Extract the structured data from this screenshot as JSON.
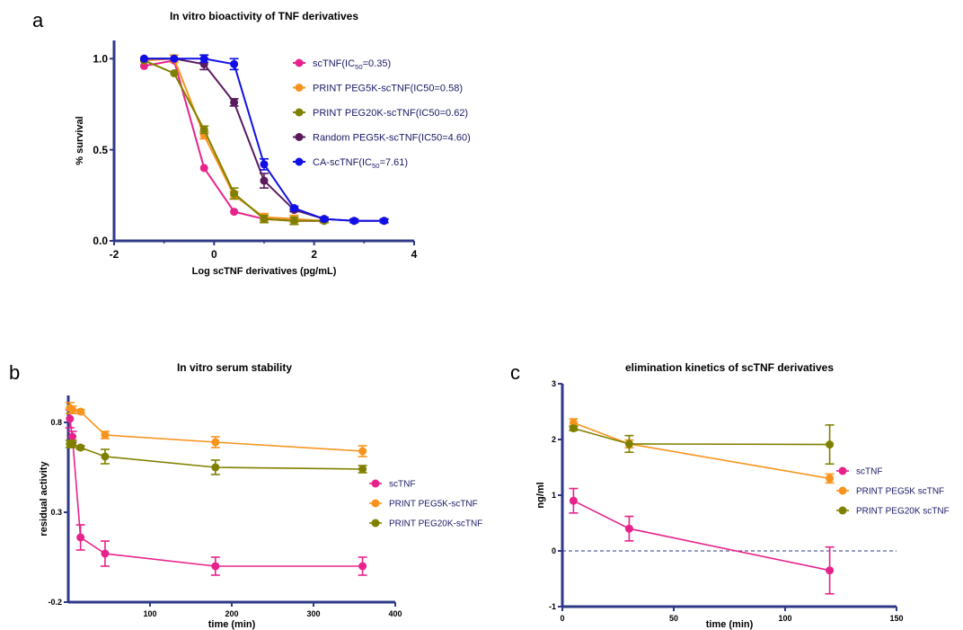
{
  "panels": {
    "a": {
      "letter": "a"
    },
    "b": {
      "letter": "b"
    },
    "c": {
      "letter": "c"
    }
  },
  "chart_data": [
    {
      "id": "a",
      "type": "line",
      "title": "In vitro bioactivity of TNF derivatives",
      "xlabel": "Log scTNF derivatives (pg/mL)",
      "ylabel": "% survival",
      "xlim": [
        -2,
        4
      ],
      "ylim": [
        0,
        1.1
      ],
      "xticks": [
        -2,
        0,
        2,
        4
      ],
      "yticks": [
        0.0,
        0.5,
        1.0
      ],
      "ytick_labels": [
        "0.0",
        "0.5",
        "1.0"
      ],
      "legend_position": "top-right",
      "series": [
        {
          "name": "scTNF(IC",
          "name_sub": "50",
          "name_tail": "=0.35)",
          "color": "#e8228b",
          "x": [
            -1.4,
            -0.8,
            -0.2,
            0.4,
            1.0,
            1.6,
            2.2
          ],
          "y": [
            0.96,
            0.99,
            0.4,
            0.16,
            0.12,
            0.11,
            0.11
          ],
          "err": [
            0,
            0,
            0,
            0,
            0,
            0,
            0
          ]
        },
        {
          "name": "PRINT PEG5K-scTNF(IC50=0.58)",
          "color": "#f7941d",
          "x": [
            -1.4,
            -0.8,
            -0.2,
            0.4,
            1.0,
            1.6,
            2.2
          ],
          "y": [
            0.99,
            1.0,
            0.58,
            0.25,
            0.13,
            0.12,
            0.11
          ],
          "err": [
            0,
            0.02,
            0.02,
            0.02,
            0.02,
            0.02,
            0.01
          ]
        },
        {
          "name": "PRINT PEG20K-scTNF(IC50=0.62)",
          "color": "#808000",
          "x": [
            -1.4,
            -0.8,
            -0.2,
            0.4,
            1.0,
            1.6,
            2.2
          ],
          "y": [
            0.99,
            0.92,
            0.61,
            0.26,
            0.12,
            0.11,
            0.11
          ],
          "err": [
            0,
            0,
            0.02,
            0.03,
            0.02,
            0.02,
            0.01
          ]
        },
        {
          "name": "Random PEG5K-scTNF(IC50=4.60)",
          "color": "#5a1a5e",
          "x": [
            -1.4,
            -0.8,
            -0.2,
            0.4,
            1.0,
            1.6,
            2.2,
            2.8,
            3.4
          ],
          "y": [
            1.0,
            1.0,
            0.97,
            0.76,
            0.33,
            0.17,
            0.12,
            0.11,
            0.11
          ],
          "err": [
            0,
            0,
            0.03,
            0.02,
            0.04,
            0.01,
            0.01,
            0.01,
            0.01
          ]
        },
        {
          "name": "CA-scTNF(IC",
          "name_sub": "50",
          "name_tail": "=7.61)",
          "color": "#1010e6",
          "x": [
            -1.4,
            -0.8,
            -0.2,
            0.4,
            1.0,
            1.6,
            2.2,
            2.8,
            3.4
          ],
          "y": [
            1.0,
            1.0,
            1.0,
            0.97,
            0.42,
            0.18,
            0.12,
            0.11,
            0.11
          ],
          "err": [
            0,
            0,
            0.02,
            0.03,
            0.03,
            0.01,
            0.01,
            0.01,
            0.01
          ]
        }
      ]
    },
    {
      "id": "b",
      "type": "line",
      "title": "In vitro serum stability",
      "xlabel": "time (min)",
      "ylabel": "residual activity",
      "xlim": [
        0,
        400
      ],
      "ylim": [
        -0.2,
        0.95
      ],
      "xticks": [
        100,
        200,
        300,
        400
      ],
      "yticks": [
        -0.2,
        0.3,
        0.8
      ],
      "ytick_labels": [
        "-0.2",
        "0.3",
        "0.8"
      ],
      "legend_position": "right",
      "series": [
        {
          "name": "scTNF",
          "color": "#e8228b",
          "x": [
            2,
            5,
            15,
            45,
            180,
            360
          ],
          "y": [
            0.82,
            0.72,
            0.16,
            0.07,
            0.0,
            0.0
          ],
          "err": [
            0.05,
            0.03,
            0.07,
            0.07,
            0.05,
            0.05
          ]
        },
        {
          "name": "PRINT PEG5K-scTNF",
          "color": "#f7941d",
          "x": [
            2,
            5,
            15,
            45,
            180,
            360
          ],
          "y": [
            0.88,
            0.87,
            0.86,
            0.73,
            0.69,
            0.64
          ],
          "err": [
            0.03,
            0.02,
            0.01,
            0.02,
            0.03,
            0.03
          ]
        },
        {
          "name": "PRINT PEG20K-scTNF",
          "color": "#808000",
          "x": [
            2,
            5,
            15,
            45,
            180,
            360
          ],
          "y": [
            0.68,
            0.68,
            0.66,
            0.61,
            0.55,
            0.54
          ],
          "err": [
            0.02,
            0.02,
            0.01,
            0.04,
            0.04,
            0.02
          ]
        }
      ]
    },
    {
      "id": "c",
      "type": "line",
      "title": "elimination kinetics of scTNF derivatives",
      "xlabel": "time (min)",
      "ylabel": "ng/ml",
      "xlim": [
        0,
        150
      ],
      "ylim": [
        -1,
        3
      ],
      "xticks": [
        0,
        50,
        100,
        150
      ],
      "yticks": [
        -1,
        0,
        1,
        2,
        3
      ],
      "ytick_labels": [
        "-1",
        "0",
        "1",
        "2",
        "3"
      ],
      "reference_line": 0,
      "legend_position": "right",
      "series": [
        {
          "name": "scTNF",
          "color": "#e8228b",
          "x": [
            5,
            30,
            120
          ],
          "y": [
            0.9,
            0.4,
            -0.35
          ],
          "err": [
            0.22,
            0.22,
            0.42
          ]
        },
        {
          "name": "PRINT PEG5K scTNF",
          "color": "#f7941d",
          "x": [
            5,
            30,
            120
          ],
          "y": [
            2.3,
            1.92,
            1.3
          ],
          "err": [
            0.07,
            0.07,
            0.08
          ]
        },
        {
          "name": "PRINT PEG20K scTNF",
          "color": "#808000",
          "x": [
            5,
            30,
            120
          ],
          "y": [
            2.2,
            1.92,
            1.91
          ],
          "err": [
            0.04,
            0.15,
            0.35
          ]
        }
      ]
    }
  ]
}
